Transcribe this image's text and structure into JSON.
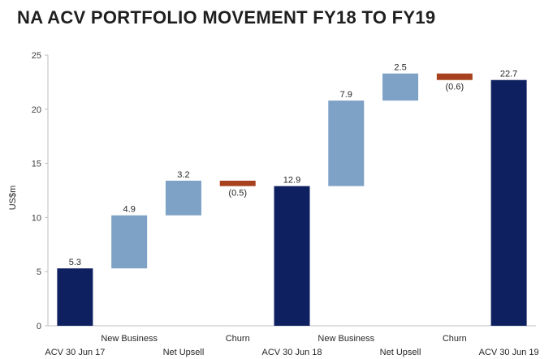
{
  "title": "NA ACV PORTFOLIO MOVEMENT FY18 TO FY19",
  "colors": {
    "total": "#0e2060",
    "increase": "#7ea1c6",
    "decrease": "#a8421e",
    "axis": "#bfbfbf"
  },
  "chart_data": {
    "type": "bar",
    "subtype": "waterfall",
    "title": "NA ACV PORTFOLIO MOVEMENT FY18 TO FY19",
    "xlabel": "",
    "ylabel": "US$m",
    "ylim": [
      0,
      25
    ],
    "yticks": [
      "0",
      "5",
      "10",
      "15",
      "20",
      "25"
    ],
    "grid": false,
    "categories": [
      "ACV 30 Jun 17",
      "New Business",
      "Net Upsell",
      "Churn",
      "ACV 30 Jun 18",
      "New Business",
      "Net Upsell",
      "Churn",
      "ACV 30 Jun 19"
    ],
    "values": [
      5.3,
      4.9,
      3.2,
      -0.5,
      12.9,
      7.9,
      2.5,
      -0.6,
      22.7
    ],
    "kinds": [
      "total",
      "increase",
      "increase",
      "decrease",
      "total",
      "increase",
      "increase",
      "decrease",
      "total"
    ],
    "data_labels": [
      "5.3",
      "4.9",
      "3.2",
      "(0.5)",
      "12.9",
      "7.9",
      "2.5",
      "(0.6)",
      "22.7"
    ]
  }
}
